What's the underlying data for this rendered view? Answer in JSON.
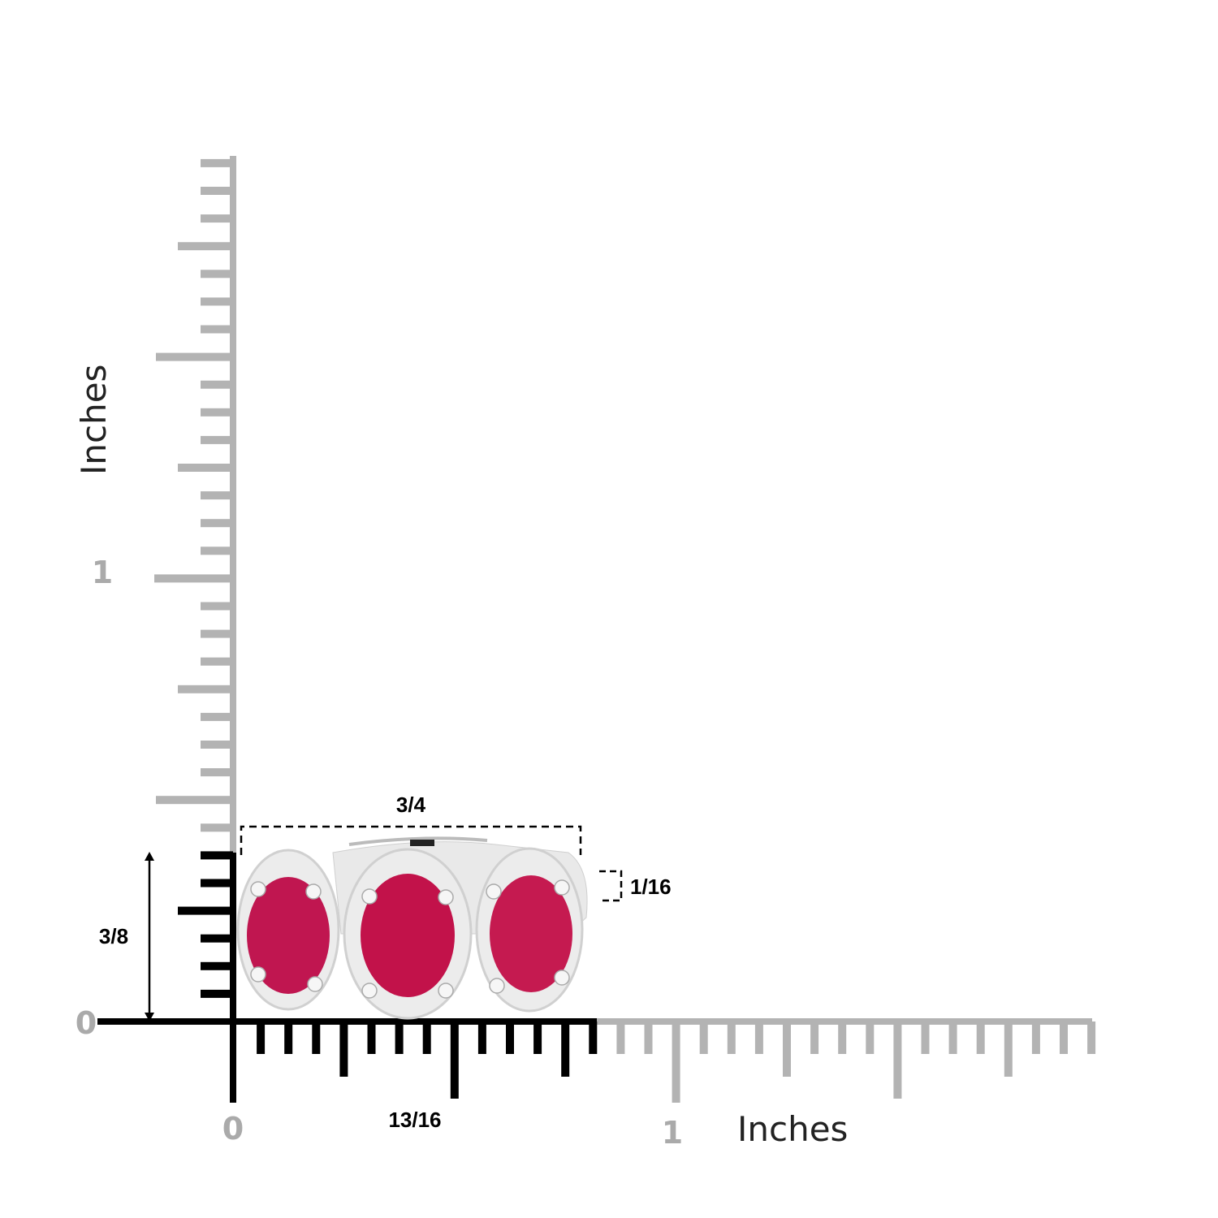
{
  "rulers": {
    "unit_label_vertical": "Inches",
    "unit_label_horizontal": "Inches",
    "vertical_labels": [
      "0",
      "1"
    ],
    "horizontal_labels": [
      "0",
      "1"
    ],
    "subdivision": "1/16 inch",
    "vertical_range_inches": [
      0,
      2
    ],
    "horizontal_range_inches": [
      0,
      2
    ],
    "highlight_color": "#000000",
    "ruler_color": "#b3b3b3"
  },
  "dimensions": {
    "width": "3/4",
    "height": "3/8",
    "band_width": "1/16",
    "axis_width": "13/16"
  },
  "product": {
    "stone_color": "#c01650",
    "metal_color": "#e8e8e8",
    "stone_count": 3
  }
}
